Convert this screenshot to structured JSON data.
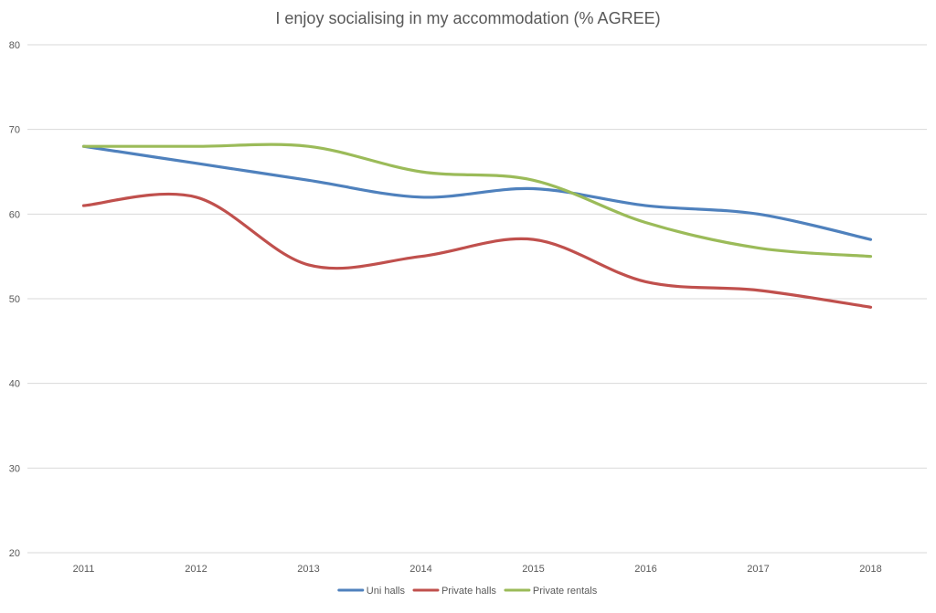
{
  "chart_data": {
    "type": "line",
    "title": "I enjoy socialising in my accommodation (% AGREE)",
    "xlabel": "",
    "ylabel": "",
    "categories": [
      "2011",
      "2012",
      "2013",
      "2014",
      "2015",
      "2016",
      "2017",
      "2018"
    ],
    "ylim": [
      20,
      80
    ],
    "yticks": [
      "20",
      "30",
      "40",
      "50",
      "60",
      "70",
      "80"
    ],
    "grid": true,
    "smooth": true,
    "legend_position": "bottom",
    "series": [
      {
        "name": "Uni halls",
        "color": "#4f81bd",
        "values": [
          68,
          66,
          64,
          62,
          63,
          61,
          60,
          57
        ]
      },
      {
        "name": "Private halls",
        "color": "#c0504d",
        "values": [
          61,
          62,
          54,
          55,
          57,
          52,
          51,
          49
        ]
      },
      {
        "name": "Private rentals",
        "color": "#9bbb59",
        "values": [
          68,
          68,
          68,
          65,
          64,
          59,
          56,
          55
        ]
      }
    ]
  }
}
